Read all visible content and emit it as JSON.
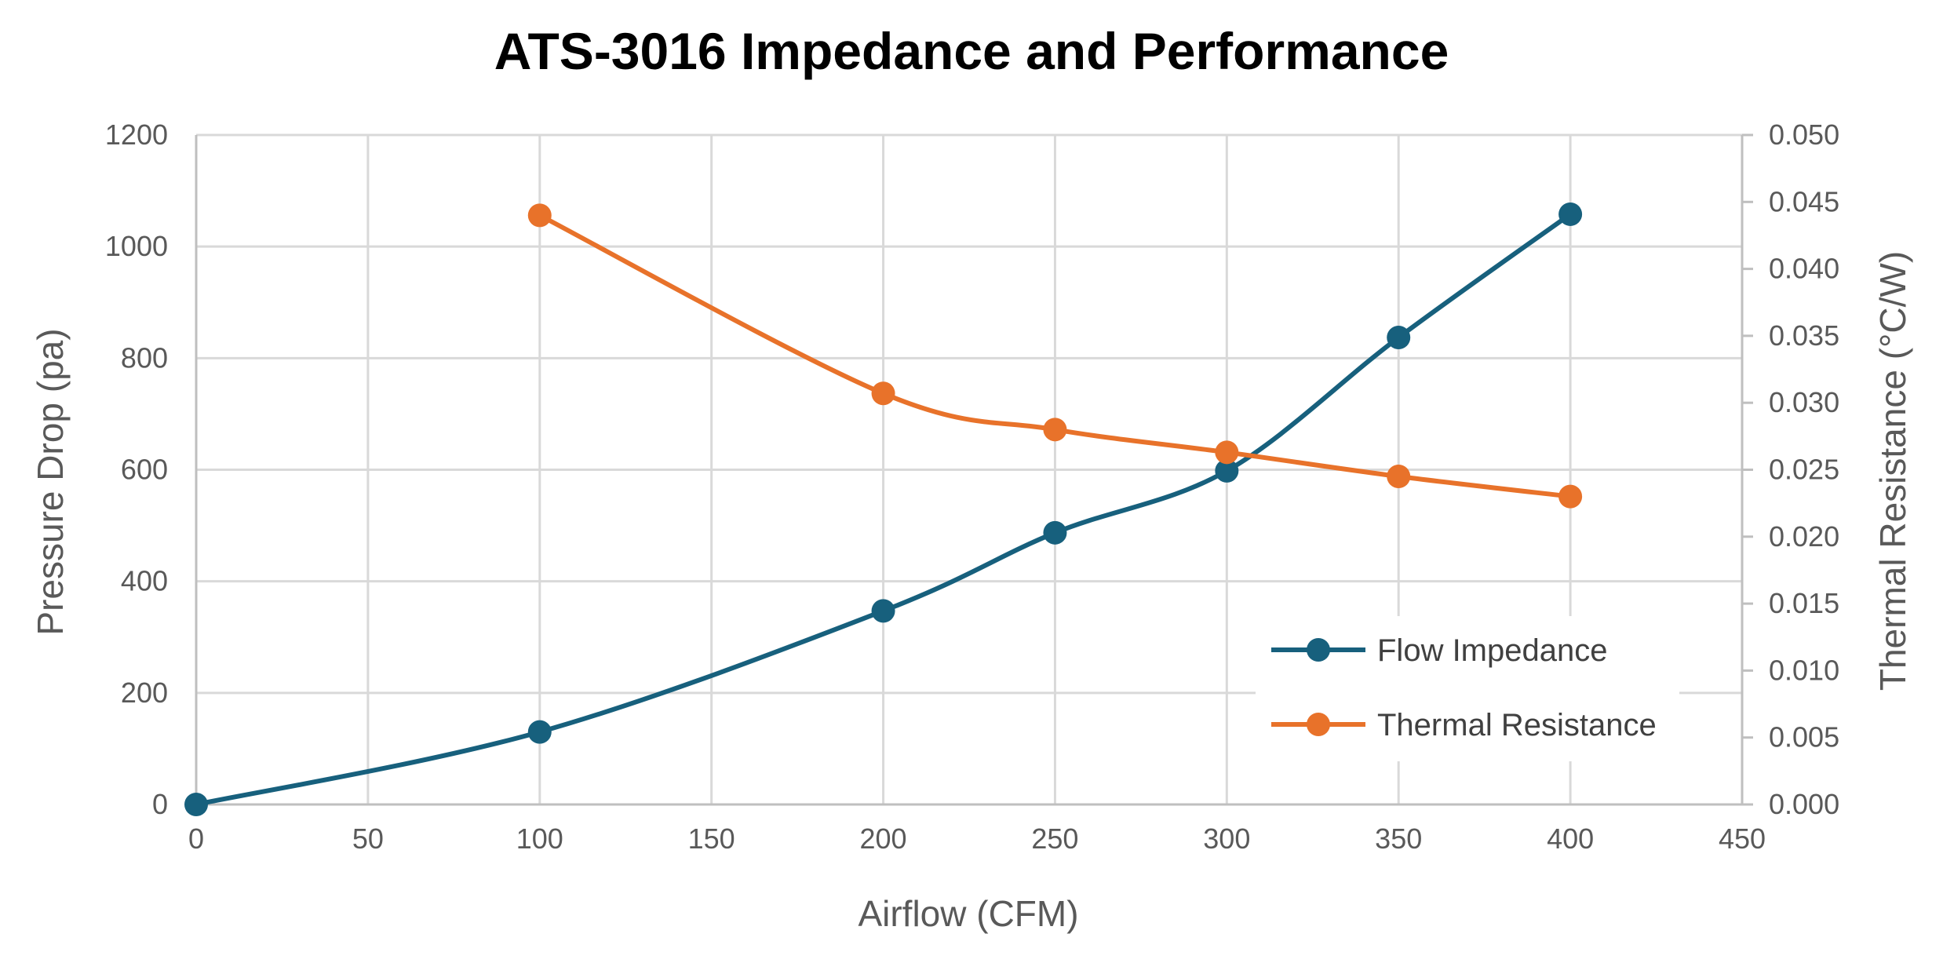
{
  "chart_data": {
    "type": "line",
    "title": "ATS-3016 Impedance and Performance",
    "xlabel": "Airflow (CFM)",
    "ylabel": "Pressure Drop (pa)",
    "y2label": "Thermal Resistance (°C/W)",
    "xlim": [
      0,
      450
    ],
    "ylim": [
      0,
      1200
    ],
    "y2lim": [
      0,
      0.05
    ],
    "x_ticks": [
      "0",
      "50",
      "100",
      "150",
      "200",
      "250",
      "300",
      "350",
      "400",
      "450"
    ],
    "y_ticks": [
      "0",
      "200",
      "400",
      "600",
      "800",
      "1000",
      "1200"
    ],
    "y2_ticks": [
      "0.000",
      "0.005",
      "0.010",
      "0.015",
      "0.020",
      "0.025",
      "0.030",
      "0.035",
      "0.040",
      "0.045",
      "0.050"
    ],
    "grid": true,
    "legend_position": "bottom-right",
    "series": [
      {
        "name": "Flow Impedance",
        "axis": "left",
        "color": "#17607d",
        "x": [
          0,
          100,
          200,
          250,
          300,
          350,
          400
        ],
        "values": [
          0,
          130,
          347,
          487,
          598,
          837,
          1058
        ]
      },
      {
        "name": "Thermal Resistance",
        "axis": "right",
        "color": "#e8722a",
        "x": [
          100,
          200,
          250,
          300,
          350,
          400
        ],
        "values": [
          0.044,
          0.0307,
          0.028,
          0.0263,
          0.0245,
          0.023
        ]
      }
    ]
  }
}
